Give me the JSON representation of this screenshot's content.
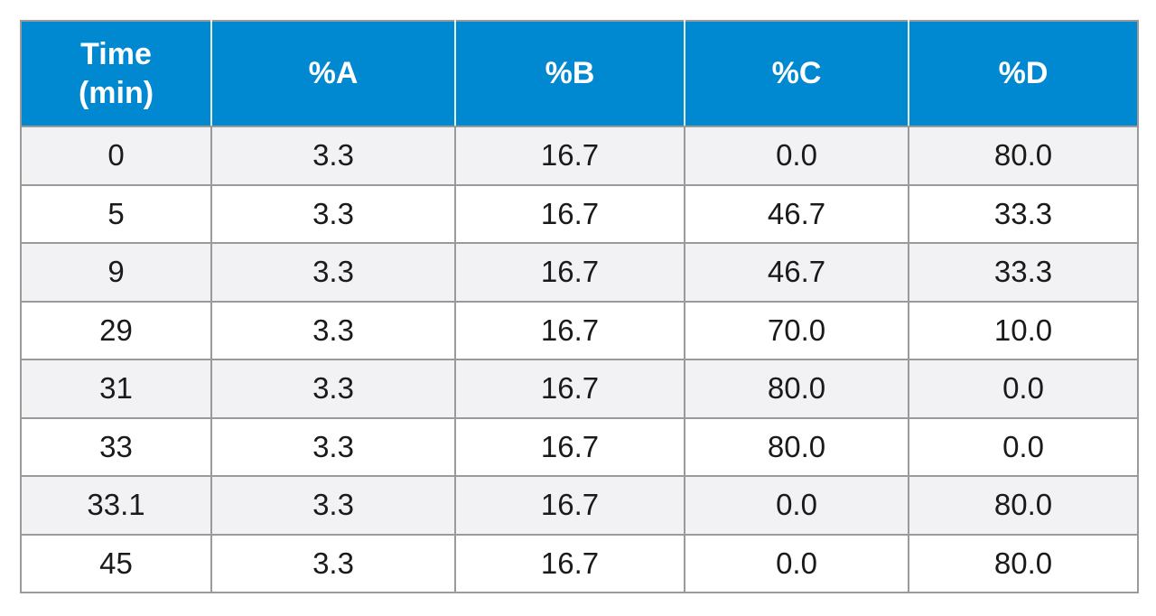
{
  "table": {
    "header_color": "#0088d1",
    "header_text_color": "#ffffff",
    "stripe_color": "#f2f2f4",
    "border_color": "#9a9a9a",
    "columns": [
      {
        "line1": "Time",
        "line2": "(min)"
      },
      {
        "line1": "%A",
        "line2": ""
      },
      {
        "line1": "%B",
        "line2": ""
      },
      {
        "line1": "%C",
        "line2": ""
      },
      {
        "line1": "%D",
        "line2": ""
      }
    ],
    "rows": [
      [
        "0",
        "3.3",
        "16.7",
        "0.0",
        "80.0"
      ],
      [
        "5",
        "3.3",
        "16.7",
        "46.7",
        "33.3"
      ],
      [
        "9",
        "3.3",
        "16.7",
        "46.7",
        "33.3"
      ],
      [
        "29",
        "3.3",
        "16.7",
        "70.0",
        "10.0"
      ],
      [
        "31",
        "3.3",
        "16.7",
        "80.0",
        "0.0"
      ],
      [
        "33",
        "3.3",
        "16.7",
        "80.0",
        "0.0"
      ],
      [
        "33.1",
        "3.3",
        "16.7",
        "0.0",
        "80.0"
      ],
      [
        "45",
        "3.3",
        "16.7",
        "0.0",
        "80.0"
      ]
    ]
  }
}
